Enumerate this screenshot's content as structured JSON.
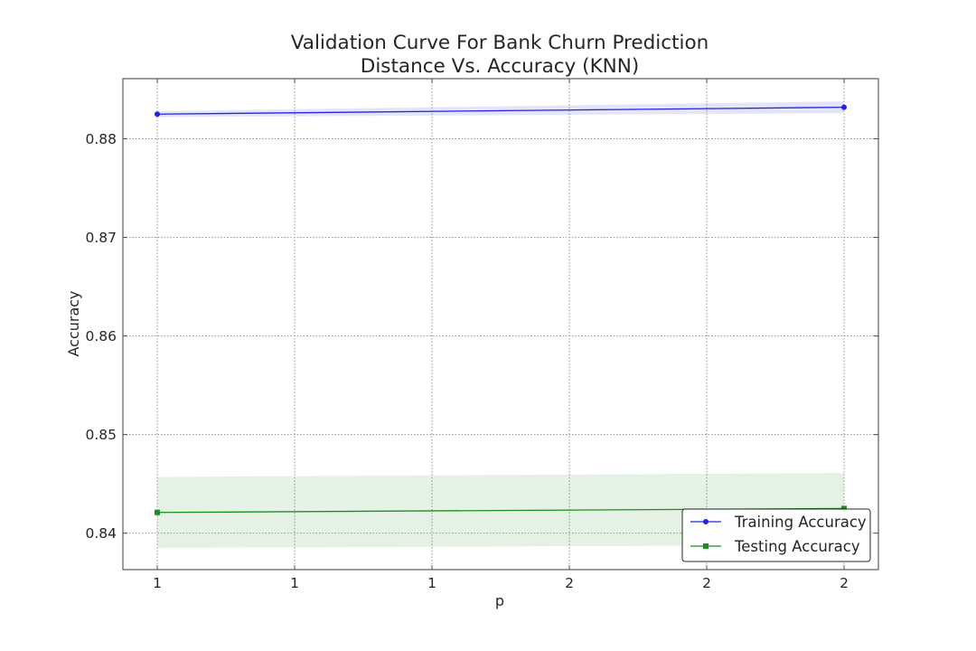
{
  "chart_data": {
    "type": "line",
    "title": "Validation Curve For Bank Churn Prediction",
    "subtitle": "Distance Vs. Accuracy (KNN)",
    "xlabel": "p",
    "ylabel": "Accuracy",
    "x": [
      1,
      2
    ],
    "x_tick_values": [
      1.0,
      1.2,
      1.4,
      1.6,
      1.8,
      2.0
    ],
    "x_tick_labels": [
      "1",
      "1",
      "1",
      "2",
      "2",
      "2"
    ],
    "xlim": [
      0.95,
      2.05
    ],
    "ylim": [
      0.8363,
      0.8861
    ],
    "y_tick_values": [
      0.84,
      0.85,
      0.86,
      0.87,
      0.88
    ],
    "y_tick_labels": [
      "0.84",
      "0.85",
      "0.86",
      "0.87",
      "0.88"
    ],
    "grid": true,
    "legend_position": "lower-right",
    "series": [
      {
        "name": "Training Accuracy",
        "color": "#2424e0",
        "marker": "circle",
        "values": [
          0.8825,
          0.8832
        ],
        "band_lower": [
          0.8822,
          0.8826
        ],
        "band_upper": [
          0.8828,
          0.8838
        ]
      },
      {
        "name": "Testing Accuracy",
        "color": "#1e8c1e",
        "marker": "square",
        "values": [
          0.8421,
          0.8425
        ],
        "band_lower": [
          0.8385,
          0.8388
        ],
        "band_upper": [
          0.8457,
          0.8461
        ]
      }
    ]
  }
}
